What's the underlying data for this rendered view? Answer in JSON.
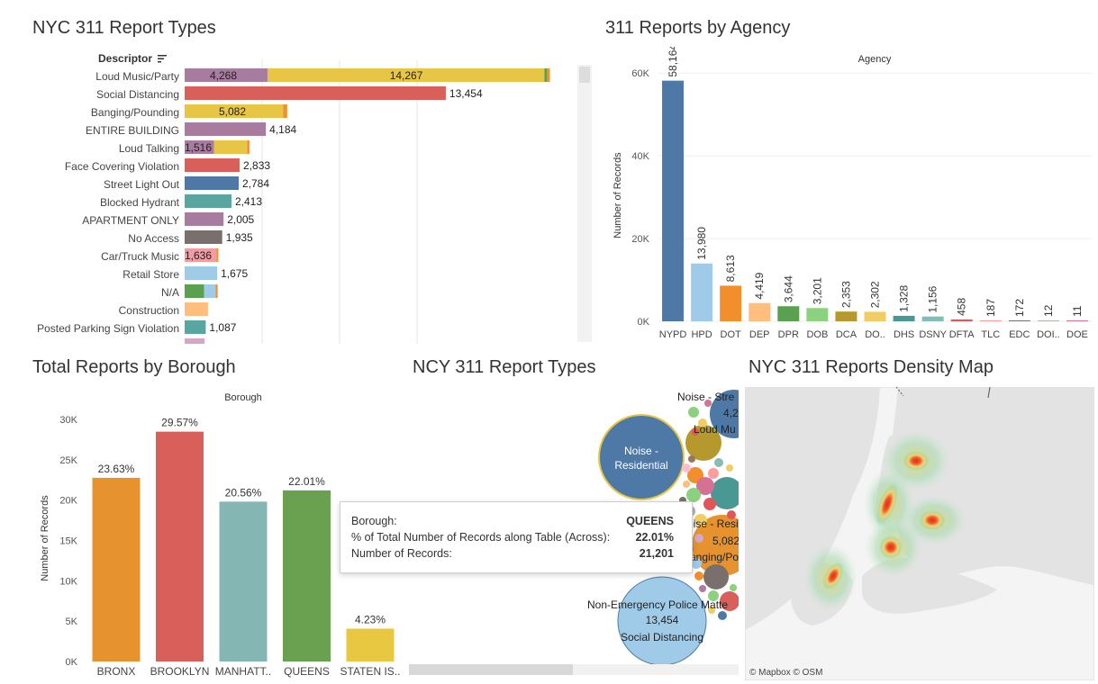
{
  "titles": {
    "report_types": "NYC 311 Report Types",
    "by_agency": "311 Reports by Agency",
    "by_borough": "Total Reports by Borough",
    "bubble": "NCY 311 Report Types",
    "density": "NYC 311 Reports Density Map"
  },
  "report_types_panel": {
    "descriptor_header": "Descriptor",
    "sort_icon": "sort-descending-icon"
  },
  "agency_panel": {
    "header": "Agency",
    "ylabel": "Number of Records"
  },
  "borough_panel": {
    "header": "Borough",
    "ylabel": "Number of Records"
  },
  "tooltip": {
    "borough_key": "Borough:",
    "borough_val": "QUEENS",
    "pct_key": "% of Total Number of Records along Table (Across):",
    "pct_val": "22.01%",
    "records_key": "Number of Records:",
    "records_val": "21,201"
  },
  "bubble_labels": {
    "street": "Noise - Stre",
    "street_val": "4,2",
    "loud_mu": "Loud Mu",
    "residential": "Noise - Residential",
    "residential2_a": "oise - Resi",
    "residential2_val": "5,082",
    "residential2_b": "anging/Po",
    "police": "Non-Emergency Police Matte",
    "police_val": "13,454",
    "police_desc": "Social Distancing"
  },
  "map": {
    "attribution": "© Mapbox  © OSM"
  },
  "colors": {
    "purple": "#a87c9f",
    "yellow": "#e7c646",
    "red": "#d95f5a",
    "blue": "#4e79a7",
    "teal": "#59a5a0",
    "gray": "#79706e",
    "pink": "#f19ca2",
    "lightblue": "#a0cbe8",
    "green": "#59a14f",
    "orange": "#f28e2b",
    "peach": "#ffbe7d"
  },
  "chart_data": [
    {
      "type": "bar",
      "orientation": "horizontal",
      "stacked": true,
      "title": "NYC 311 Report Types",
      "categories": [
        "Loud Music/Party",
        "Social Distancing",
        "Banging/Pounding",
        "ENTIRE BUILDING",
        "Loud Talking",
        "Face Covering Violation",
        "Street Light Out",
        "Blocked Hydrant",
        "APARTMENT ONLY",
        "No Access",
        "Car/Truck Music",
        "Retail Store",
        "N/A",
        "Construction",
        "Posted Parking Sign Violation"
      ],
      "rows": [
        {
          "segments": [
            {
              "v": 4268,
              "c": "purple",
              "label": "4,268"
            },
            {
              "v": 14267,
              "c": "yellow",
              "label": "14,267"
            },
            {
              "v": 120,
              "c": "green"
            },
            {
              "v": 160,
              "c": "orange"
            }
          ]
        },
        {
          "segments": [
            {
              "v": 13454,
              "c": "red"
            }
          ],
          "label": "13,454"
        },
        {
          "segments": [
            {
              "v": 5082,
              "c": "yellow",
              "label": "5,082"
            },
            {
              "v": 200,
              "c": "orange"
            }
          ]
        },
        {
          "segments": [
            {
              "v": 4184,
              "c": "purple"
            }
          ],
          "label": "4,184"
        },
        {
          "segments": [
            {
              "v": 1516,
              "c": "purple",
              "label": "1,516"
            },
            {
              "v": 1700,
              "c": "yellow"
            },
            {
              "v": 120,
              "c": "orange"
            }
          ]
        },
        {
          "segments": [
            {
              "v": 2833,
              "c": "red"
            }
          ],
          "label": "2,833"
        },
        {
          "segments": [
            {
              "v": 2784,
              "c": "blue"
            }
          ],
          "label": "2,784"
        },
        {
          "segments": [
            {
              "v": 2413,
              "c": "teal"
            }
          ],
          "label": "2,413"
        },
        {
          "segments": [
            {
              "v": 2005,
              "c": "purple"
            }
          ],
          "label": "2,005"
        },
        {
          "segments": [
            {
              "v": 1935,
              "c": "gray"
            }
          ],
          "label": "1,935"
        },
        {
          "segments": [
            {
              "v": 1636,
              "c": "pink",
              "label": "1,636"
            },
            {
              "v": 100,
              "c": "orange"
            }
          ]
        },
        {
          "segments": [
            {
              "v": 1675,
              "c": "lightblue"
            }
          ],
          "label": "1,675"
        },
        {
          "segments": [
            {
              "v": 1000,
              "c": "green"
            },
            {
              "v": 600,
              "c": "lightblue"
            },
            {
              "v": 100,
              "c": "orange"
            }
          ]
        },
        {
          "segments": [
            {
              "v": 1200,
              "c": "peach"
            }
          ]
        },
        {
          "segments": [
            {
              "v": 1087,
              "c": "teal"
            }
          ],
          "label": "1,087"
        }
      ]
    },
    {
      "type": "bar",
      "title": "311 Reports by Agency",
      "xlabel": "Agency",
      "ylabel": "Number of Records",
      "categories": [
        "NYPD",
        "HPD",
        "DOT",
        "DEP",
        "DPR",
        "DOB",
        "DCA",
        "DO..",
        "DHS",
        "DSNY",
        "DFTA",
        "TLC",
        "EDC",
        "DOI..",
        "DOE"
      ],
      "values": [
        58164,
        13980,
        8613,
        4419,
        3644,
        3201,
        2353,
        2302,
        1328,
        1156,
        458,
        187,
        172,
        12,
        11
      ],
      "value_labels": [
        "58,164",
        "13,980",
        "8,613",
        "4,419",
        "3,644",
        "3,201",
        "2,353",
        "2,302",
        "1,328",
        "1,156",
        "458",
        "187",
        "172",
        "12",
        "11"
      ],
      "colors": [
        "#4e79a7",
        "#a0cbe8",
        "#f28e2b",
        "#ffbe7d",
        "#59a14f",
        "#8cd17d",
        "#b6992d",
        "#f1ce63",
        "#499894",
        "#86bcb6",
        "#e15759",
        "#ff9d9a",
        "#79706e",
        "#bab0ac",
        "#d37295"
      ],
      "yticks": [
        0,
        20000,
        40000,
        60000
      ],
      "ytick_labels": [
        "0K",
        "20K",
        "40K",
        "60K"
      ],
      "ylim": [
        0,
        62000
      ],
      "grid": true
    },
    {
      "type": "bar",
      "title": "Total Reports by Borough",
      "xlabel": "Borough",
      "ylabel": "Number of Records",
      "categories": [
        "BRONX",
        "BROOKLYN",
        "MANHATT..",
        "QUEENS",
        "STATEN IS.."
      ],
      "values": [
        22760,
        28480,
        19810,
        21201,
        4070
      ],
      "value_labels": [
        "23.63%",
        "29.57%",
        "20.56%",
        "22.01%",
        "4.23%"
      ],
      "colors": [
        "#e6932f",
        "#d95f5a",
        "#84b7b4",
        "#6aa150",
        "#e8c840"
      ],
      "yticks": [
        0,
        5000,
        10000,
        15000,
        20000,
        25000,
        30000
      ],
      "ytick_labels": [
        "0K",
        "5K",
        "10K",
        "15K",
        "20K",
        "25K",
        "30K"
      ],
      "ylim": [
        0,
        30000
      ],
      "grid": false
    }
  ]
}
